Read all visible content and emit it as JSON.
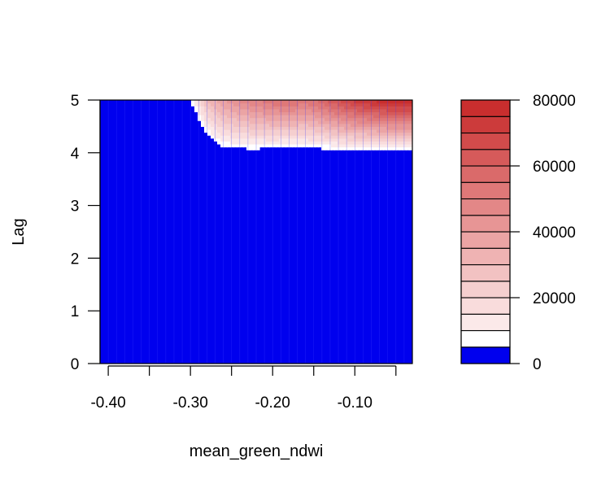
{
  "chart_data": {
    "type": "heatmap",
    "title": "",
    "xlabel": "mean_green_ndwi",
    "ylabel": "Lag",
    "xlim": [
      -0.41,
      -0.03
    ],
    "ylim": [
      0,
      5
    ],
    "x_ticks": [
      -0.4,
      -0.35,
      -0.3,
      -0.25,
      -0.2,
      -0.15,
      -0.1,
      -0.05
    ],
    "x_tick_labels": [
      "-0.40",
      "-0.30",
      "-0.20",
      "-0.10"
    ],
    "x_tick_label_values": [
      -0.4,
      -0.3,
      -0.2,
      -0.1
    ],
    "y_ticks": [
      0,
      1,
      2,
      3,
      4,
      5
    ],
    "y_tick_labels": [
      "0",
      "1",
      "2",
      "3",
      "4",
      "5"
    ],
    "colorbar": {
      "range": [
        0,
        80000
      ],
      "levels": [
        0,
        5000,
        10000,
        15000,
        20000,
        25000,
        30000,
        35000,
        40000,
        45000,
        50000,
        55000,
        60000,
        65000,
        70000,
        75000,
        80000
      ],
      "colors": [
        "#0000ee",
        "#ffffff",
        "#fbe9e9",
        "#f9dcdc",
        "#f5cfcf",
        "#f2c2c2",
        "#efb3b3",
        "#eba4a4",
        "#e79595",
        "#e38787",
        "#df7878",
        "#da6a6a",
        "#d65a5a",
        "#d24b4b",
        "#cc3b3b",
        "#c92e2e"
      ],
      "tick_values": [
        0,
        20000,
        40000,
        60000,
        80000
      ],
      "tick_labels": [
        "0",
        "20000",
        "40000",
        "60000",
        "80000"
      ]
    },
    "boundary_x": [
      -0.41,
      -0.3,
      -0.29,
      -0.28,
      -0.27,
      -0.26,
      -0.25,
      -0.22,
      -0.19,
      -0.17,
      -0.15,
      -0.12,
      -0.1,
      -0.07,
      -0.03
    ],
    "boundary_lag": [
      5.0,
      5.0,
      4.65,
      4.35,
      4.2,
      4.12,
      4.09,
      4.08,
      4.1,
      4.11,
      4.09,
      4.07,
      4.06,
      4.06,
      4.06
    ],
    "surface_max_x": [
      -0.41,
      -0.3,
      -0.28,
      -0.26,
      -0.24,
      -0.22,
      -0.2,
      -0.18,
      -0.16,
      -0.14,
      -0.12,
      -0.1,
      -0.08,
      -0.06,
      -0.03
    ],
    "surface_max_value": [
      0,
      8000,
      30000,
      40000,
      46000,
      50000,
      54000,
      56000,
      53000,
      58000,
      66000,
      72000,
      76000,
      79000,
      80000
    ]
  }
}
